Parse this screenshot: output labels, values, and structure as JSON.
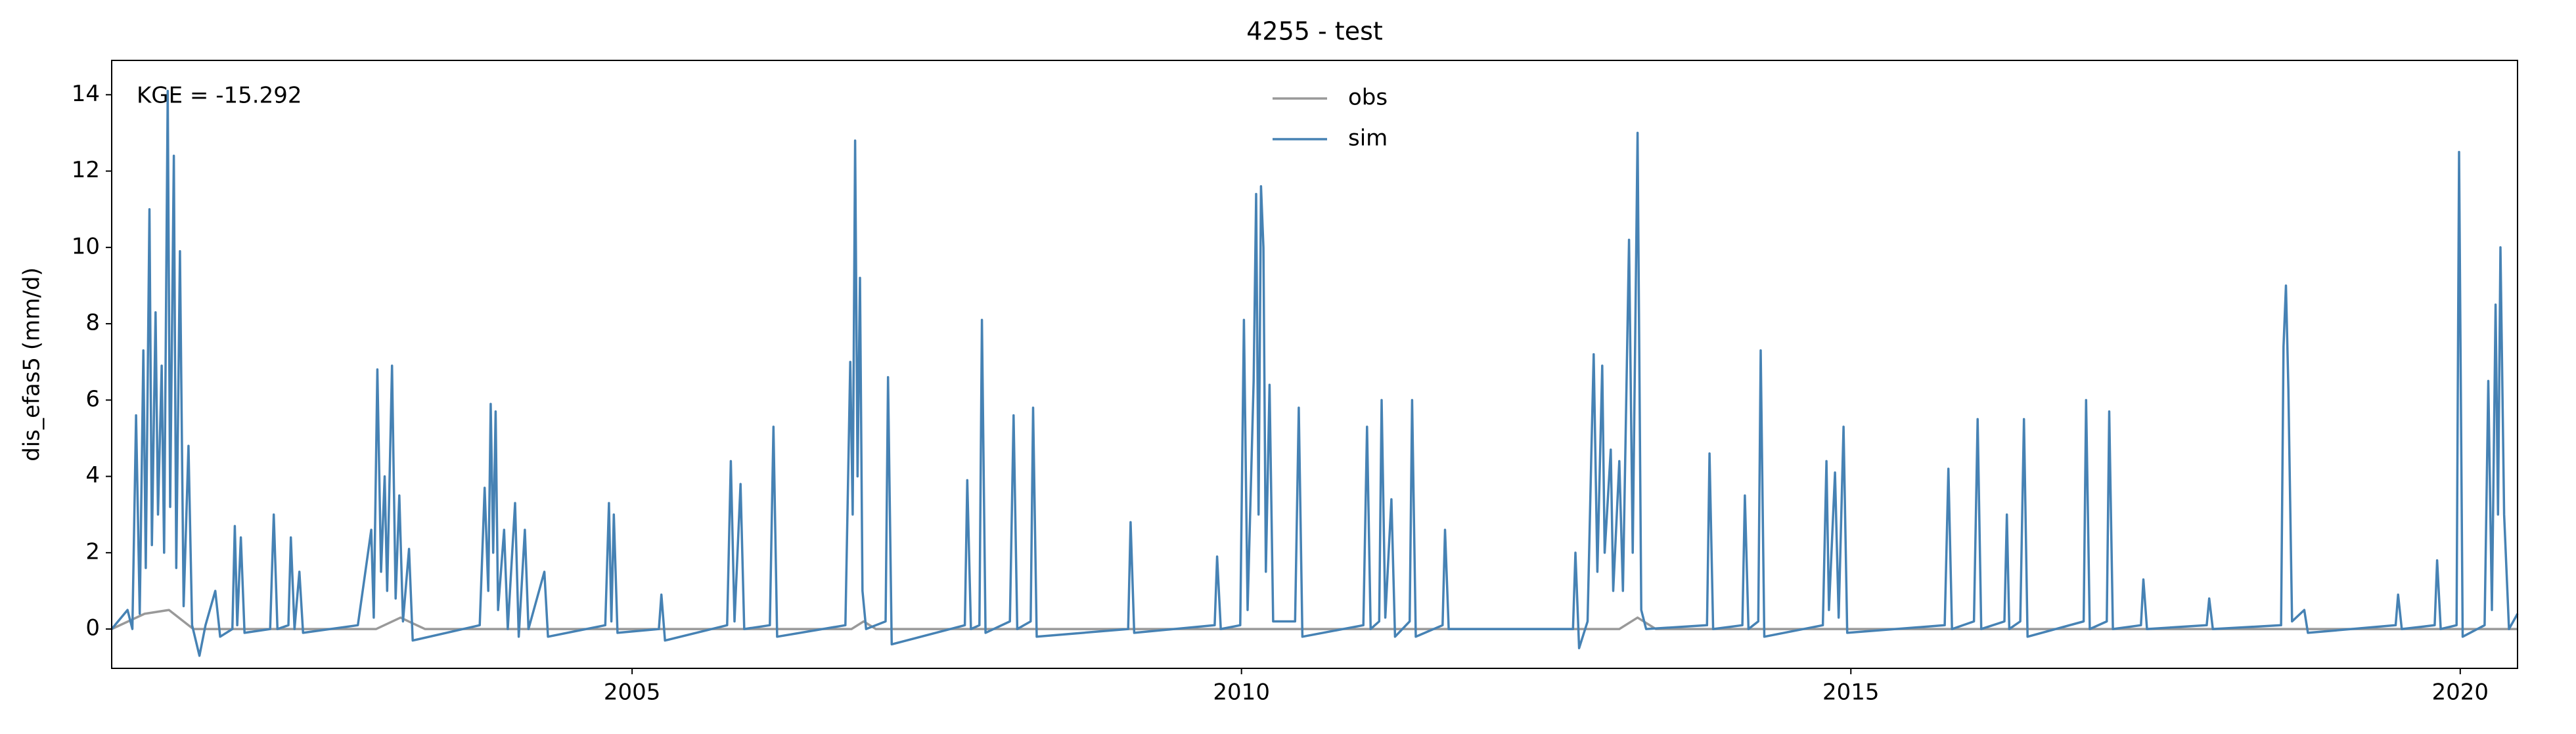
{
  "chart_data": {
    "type": "line",
    "title": "4255 - test",
    "ylabel": "dis_efas5 (mm/d)",
    "annotation": "KGE = -15.292",
    "legend": "upper center",
    "grid": false,
    "xlim": [
      2000.73,
      2020.47
    ],
    "xticks": [
      2005,
      2010,
      2015,
      2020
    ],
    "ylim": [
      -1.03,
      14.9
    ],
    "yticks": [
      0,
      2,
      4,
      6,
      8,
      10,
      12,
      14
    ],
    "series": [
      {
        "name": "obs",
        "color": "#999999",
        "x": [
          2000.73,
          2001.0,
          2001.2,
          2001.4,
          2002.9,
          2003.1,
          2003.3,
          2006.8,
          2006.9,
          2007.0,
          2013.1,
          2013.25,
          2013.4,
          2020.47
        ],
        "values": [
          0,
          0.4,
          0.5,
          0,
          0,
          0.3,
          0,
          0,
          0.2,
          0,
          0,
          0.3,
          0,
          0
        ]
      },
      {
        "name": "sim",
        "color": "#4682b4",
        "x": [
          2000.73,
          2000.86,
          2000.9,
          2000.93,
          2000.96,
          2000.99,
          2001.01,
          2001.04,
          2001.06,
          2001.09,
          2001.11,
          2001.14,
          2001.16,
          2001.19,
          2001.21,
          2001.24,
          2001.26,
          2001.29,
          2001.32,
          2001.36,
          2001.39,
          2001.45,
          2001.5,
          2001.58,
          2001.62,
          2001.72,
          2001.74,
          2001.76,
          2001.79,
          2001.82,
          2002.03,
          2002.06,
          2002.09,
          2002.18,
          2002.2,
          2002.23,
          2002.27,
          2002.3,
          2002.75,
          2002.86,
          2002.88,
          2002.91,
          2002.94,
          2002.97,
          2002.99,
          2003.03,
          2003.06,
          2003.09,
          2003.12,
          2003.17,
          2003.2,
          2003.75,
          2003.79,
          2003.82,
          2003.84,
          2003.86,
          2003.88,
          2003.9,
          2003.95,
          2003.98,
          2004.04,
          2004.07,
          2004.12,
          2004.15,
          2004.28,
          2004.31,
          2004.78,
          2004.81,
          2004.83,
          2004.85,
          2004.88,
          2005.22,
          2005.24,
          2005.27,
          2005.78,
          2005.81,
          2005.84,
          2005.89,
          2005.92,
          2006.13,
          2006.16,
          2006.19,
          2006.75,
          2006.79,
          2006.81,
          2006.83,
          2006.85,
          2006.87,
          2006.89,
          2006.92,
          2007.08,
          2007.1,
          2007.13,
          2007.73,
          2007.75,
          2007.78,
          2007.85,
          2007.87,
          2007.9,
          2008.1,
          2008.13,
          2008.16,
          2008.27,
          2008.29,
          2008.32,
          2009.07,
          2009.09,
          2009.12,
          2009.78,
          2009.8,
          2009.83,
          2009.99,
          2010.02,
          2010.05,
          2010.1,
          2010.12,
          2010.14,
          2010.16,
          2010.18,
          2010.2,
          2010.23,
          2010.26,
          2010.44,
          2010.47,
          2010.5,
          2011.0,
          2011.03,
          2011.06,
          2011.13,
          2011.15,
          2011.18,
          2011.23,
          2011.26,
          2011.38,
          2011.4,
          2011.43,
          2011.65,
          2011.67,
          2011.7,
          2012.72,
          2012.74,
          2012.77,
          2012.84,
          2012.87,
          2012.89,
          2012.92,
          2012.96,
          2012.98,
          2013.03,
          2013.05,
          2013.1,
          2013.13,
          2013.18,
          2013.21,
          2013.25,
          2013.28,
          2013.32,
          2013.82,
          2013.84,
          2013.87,
          2014.11,
          2014.13,
          2014.16,
          2014.24,
          2014.26,
          2014.29,
          2014.77,
          2014.8,
          2014.82,
          2014.87,
          2014.9,
          2014.94,
          2014.97,
          2015.77,
          2015.8,
          2015.83,
          2016.01,
          2016.04,
          2016.07,
          2016.26,
          2016.28,
          2016.3,
          2016.39,
          2016.42,
          2016.45,
          2016.91,
          2016.93,
          2016.96,
          2017.1,
          2017.12,
          2017.15,
          2017.38,
          2017.4,
          2017.43,
          2017.92,
          2017.94,
          2017.97,
          2018.53,
          2018.55,
          2018.57,
          2018.59,
          2018.62,
          2018.72,
          2018.75,
          2019.47,
          2019.49,
          2019.52,
          2019.79,
          2019.81,
          2019.84,
          2019.97,
          2019.99,
          2020.02,
          2020.2,
          2020.23,
          2020.26,
          2020.29,
          2020.31,
          2020.33,
          2020.36,
          2020.4,
          2020.47
        ],
        "values": [
          0,
          0.5,
          0,
          5.6,
          0.4,
          7.3,
          1.6,
          11.0,
          2.2,
          8.3,
          3.0,
          6.9,
          2.0,
          14.1,
          3.2,
          12.4,
          1.6,
          9.9,
          0.6,
          4.8,
          0.1,
          -0.7,
          0.1,
          1.0,
          -0.2,
          0,
          2.7,
          0.1,
          2.4,
          -0.1,
          0,
          3.0,
          0,
          0.1,
          2.4,
          0,
          1.5,
          -0.1,
          0.1,
          2.6,
          0.3,
          6.8,
          1.5,
          4.0,
          1.0,
          6.9,
          0.8,
          3.5,
          0.2,
          2.1,
          -0.3,
          0.1,
          3.7,
          1.0,
          5.9,
          2.0,
          5.7,
          0.5,
          2.6,
          0,
          3.3,
          -0.2,
          2.6,
          0,
          1.5,
          -0.2,
          0.1,
          3.3,
          0.2,
          3.0,
          -0.1,
          0,
          0.9,
          -0.3,
          0.1,
          4.4,
          0.2,
          3.8,
          0,
          0.1,
          5.3,
          -0.2,
          0.1,
          7.0,
          3.0,
          12.8,
          4.0,
          9.2,
          1.0,
          0,
          0.2,
          6.6,
          -0.4,
          0.1,
          3.9,
          0,
          0.1,
          8.1,
          -0.1,
          0.2,
          5.6,
          0,
          0.2,
          5.8,
          -0.2,
          0,
          2.8,
          -0.1,
          0.1,
          1.9,
          0,
          0.1,
          8.1,
          0.5,
          6.5,
          11.4,
          3.0,
          11.6,
          10.0,
          1.5,
          6.4,
          0.2,
          0.2,
          5.8,
          -0.2,
          0.1,
          5.3,
          0,
          0.2,
          6.0,
          0.3,
          3.4,
          -0.2,
          0.2,
          6.0,
          -0.2,
          0.1,
          2.6,
          0,
          0,
          2.0,
          -0.5,
          0.2,
          4.5,
          7.2,
          1.5,
          6.9,
          2.0,
          4.7,
          1.0,
          4.4,
          1.0,
          10.2,
          2.0,
          13.0,
          0.5,
          0,
          0.1,
          4.6,
          0,
          0.1,
          3.5,
          0,
          0.2,
          7.3,
          -0.2,
          0.1,
          4.4,
          0.5,
          4.1,
          0.3,
          5.3,
          -0.1,
          0.1,
          4.2,
          0,
          0.2,
          5.5,
          0,
          0.2,
          3.0,
          0,
          0.2,
          5.5,
          -0.2,
          0.2,
          6.0,
          0,
          0.2,
          5.7,
          0,
          0.1,
          1.3,
          0,
          0.1,
          0.8,
          0,
          0.1,
          7.4,
          9.0,
          6.3,
          0.2,
          0.5,
          -0.1,
          0.1,
          0.9,
          0,
          0.1,
          1.8,
          0,
          0.1,
          12.5,
          -0.2,
          0.1,
          6.5,
          0.5,
          8.5,
          3.0,
          10.0,
          3.0,
          0,
          0.4
        ]
      }
    ]
  }
}
